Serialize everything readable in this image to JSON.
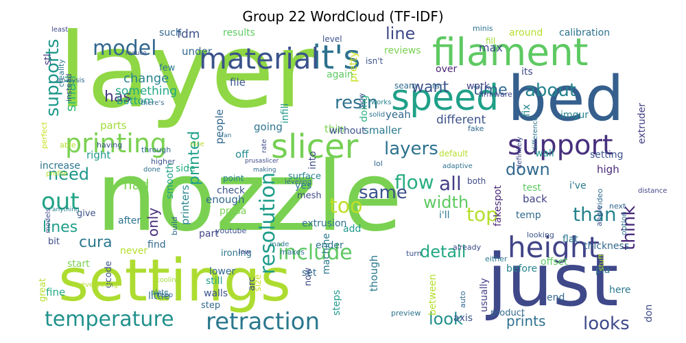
{
  "chart_data": {
    "type": "wordcloud",
    "title": "Group 22 WordCloud (TF-IDF)",
    "colormap": "viridis",
    "background": "#ffffff",
    "words": [
      {
        "text": "layer",
        "color": "#8fd744"
      },
      {
        "text": "nozzle",
        "color": "#7ad151"
      },
      {
        "text": "settings",
        "color": "#addc30"
      },
      {
        "text": "just",
        "color": "#3f4889"
      },
      {
        "text": "bed",
        "color": "#355f8d"
      },
      {
        "text": "filament",
        "color": "#5ec962"
      },
      {
        "text": "speed",
        "color": "#1fa088"
      },
      {
        "text": "slicer",
        "color": "#75d054"
      },
      {
        "text": "height",
        "color": "#414487"
      },
      {
        "text": "support",
        "color": "#472f7d"
      },
      {
        "text": "it's",
        "color": "#2c728e"
      },
      {
        "text": "material",
        "color": "#3b528b"
      },
      {
        "text": "printing",
        "color": "#7ad151"
      },
      {
        "text": "retraction",
        "color": "#2a788e"
      },
      {
        "text": "temperature",
        "color": "#21918c"
      },
      {
        "text": "model",
        "color": "#31688e"
      },
      {
        "text": "include",
        "color": "#5ec962"
      },
      {
        "text": "out",
        "color": "#20a486"
      },
      {
        "text": "resolution",
        "color": "#1e9c89"
      },
      {
        "text": "layers",
        "color": "#2c728e"
      },
      {
        "text": "supports",
        "color": "#1f988b"
      },
      {
        "text": "looks",
        "color": "#3e4a89"
      },
      {
        "text": "think",
        "color": "#482878"
      },
      {
        "text": "than",
        "color": "#26828e"
      },
      {
        "text": "cura",
        "color": "#2a788e"
      },
      {
        "text": "detail",
        "color": "#22a884"
      },
      {
        "text": "top",
        "color": "#b5de2b"
      },
      {
        "text": "flow",
        "color": "#28ae80"
      },
      {
        "text": "too",
        "color": "#bddf26"
      },
      {
        "text": "all",
        "color": "#433e85"
      },
      {
        "text": "resin",
        "color": "#2c728e"
      },
      {
        "text": "about",
        "color": "#26828e"
      },
      {
        "text": "time",
        "color": "#31688e"
      },
      {
        "text": "want",
        "color": "#3b528b"
      },
      {
        "text": "line",
        "color": "#3e4989"
      },
      {
        "text": "same",
        "color": "#3b528b"
      },
      {
        "text": "width",
        "color": "#5ec962"
      },
      {
        "text": "lines",
        "color": "#1f9e89"
      },
      {
        "text": "need",
        "color": "#1f968b"
      },
      {
        "text": "had",
        "color": "#7ad151"
      },
      {
        "text": "has",
        "color": "#453781"
      },
      {
        "text": "down",
        "color": "#31688e"
      },
      {
        "text": "printed",
        "color": "#1fa088"
      },
      {
        "text": "look",
        "color": "#21918c"
      },
      {
        "text": "prints",
        "color": "#2d708e"
      },
      {
        "text": "small",
        "color": "#35b779"
      },
      {
        "text": "only",
        "color": "#472c7a"
      },
      {
        "text": "fdm",
        "color": "#3b528b"
      },
      {
        "text": "under",
        "color": "#31688e"
      },
      {
        "text": "results",
        "color": "#5ec962"
      },
      {
        "text": "calibration",
        "color": "#2c728e"
      },
      {
        "text": "around",
        "color": "#b5de2b"
      },
      {
        "text": "max",
        "color": "#3e4989"
      },
      {
        "text": "stl",
        "color": "#443983"
      },
      {
        "text": "such",
        "color": "#31688e"
      },
      {
        "text": "few",
        "color": "#2a788e"
      },
      {
        "text": "change",
        "color": "#26828e"
      },
      {
        "text": "bottom",
        "color": "#1fa088"
      },
      {
        "text": "something",
        "color": "#22a884"
      },
      {
        "text": "parts",
        "color": "#a0da39"
      },
      {
        "text": "reviews",
        "color": "#7ad151"
      },
      {
        "text": "file",
        "color": "#3b528b"
      },
      {
        "text": "over",
        "color": "#482475"
      },
      {
        "text": "its",
        "color": "#3e4989"
      },
      {
        "text": "work",
        "color": "#414487"
      },
      {
        "text": "fix",
        "color": "#25858e"
      },
      {
        "text": "different",
        "color": "#3b528b"
      },
      {
        "text": "infill",
        "color": "#1f988b"
      },
      {
        "text": "yeah",
        "color": "#31688e"
      },
      {
        "text": "doing",
        "color": "#29af7f"
      },
      {
        "text": "pretty",
        "color": "#c8e020"
      },
      {
        "text": "again",
        "color": "#5ec962"
      },
      {
        "text": "imgur",
        "color": "#26828e"
      },
      {
        "text": "extruder",
        "color": "#433e85"
      },
      {
        "text": "wall",
        "color": "#1f988b"
      },
      {
        "text": "setting",
        "color": "#3b528b"
      },
      {
        "text": "high",
        "color": "#482878"
      },
      {
        "text": "i've",
        "color": "#2a788e"
      },
      {
        "text": "into",
        "color": "#3e4989"
      },
      {
        "text": "thin",
        "color": "#7ad151"
      },
      {
        "text": "smaller",
        "color": "#2a788e"
      },
      {
        "text": "without",
        "color": "#3b528b"
      },
      {
        "text": "going",
        "color": "#2c728e"
      },
      {
        "text": "people",
        "color": "#31688e"
      },
      {
        "text": "right",
        "color": "#1f988b"
      },
      {
        "text": "increase",
        "color": "#2c728e"
      },
      {
        "text": "side",
        "color": "#25ab82"
      },
      {
        "text": "smooth",
        "color": "#1fa088"
      },
      {
        "text": "off",
        "color": "#238a8d"
      },
      {
        "text": "check",
        "color": "#3b528b"
      },
      {
        "text": "surface",
        "color": "#26828e"
      },
      {
        "text": "enough",
        "color": "#31688e"
      },
      {
        "text": "yes",
        "color": "#2a788e"
      },
      {
        "text": "mesh",
        "color": "#3e4989"
      },
      {
        "text": "point",
        "color": "#26828e"
      },
      {
        "text": "prusa",
        "color": "#7ad151"
      },
      {
        "text": "extrusion",
        "color": "#2c728e"
      },
      {
        "text": "add",
        "color": "#1f988b"
      },
      {
        "text": "i'll",
        "color": "#2a788e"
      },
      {
        "text": "fakespot",
        "color": "#482878"
      },
      {
        "text": "temp",
        "color": "#31688e"
      },
      {
        "text": "back",
        "color": "#414487"
      },
      {
        "text": "test",
        "color": "#5ec962"
      },
      {
        "text": "flat",
        "color": "#2a788e"
      },
      {
        "text": "give",
        "color": "#3b528b"
      },
      {
        "text": "after",
        "color": "#2c728e"
      },
      {
        "text": "printers",
        "color": "#25858e"
      },
      {
        "text": "part",
        "color": "#414487"
      },
      {
        "text": "find",
        "color": "#31688e"
      },
      {
        "text": "bit",
        "color": "#3e4989"
      },
      {
        "text": "ender",
        "color": "#2c728e"
      },
      {
        "text": "start",
        "color": "#7ad151"
      },
      {
        "text": "never",
        "color": "#b5de2b"
      },
      {
        "text": "ironing",
        "color": "#2c728e"
      },
      {
        "text": "great",
        "color": "#b5de2b"
      },
      {
        "text": "gcode",
        "color": "#3b528b"
      },
      {
        "text": "lower",
        "color": "#31688e"
      },
      {
        "text": "still",
        "color": "#1fa088"
      },
      {
        "text": "walls",
        "color": "#3b528b"
      },
      {
        "text": "little",
        "color": "#2c728e"
      },
      {
        "text": "fine",
        "color": "#22a884"
      },
      {
        "text": "step",
        "color": "#31688e"
      },
      {
        "text": "size",
        "color": "#c8e020"
      },
      {
        "text": "now",
        "color": "#3e4989"
      },
      {
        "text": "machine",
        "color": "#2a788e"
      },
      {
        "text": "steps",
        "color": "#1f988b"
      },
      {
        "text": "though",
        "color": "#2a788e"
      },
      {
        "text": "set",
        "color": "#31688e"
      },
      {
        "text": "pla",
        "color": "#2c728e"
      },
      {
        "text": "offset",
        "color": "#5ec962"
      },
      {
        "text": "before",
        "color": "#26828e"
      },
      {
        "text": "product",
        "color": "#31688e"
      },
      {
        "text": "here",
        "color": "#2a788e"
      },
      {
        "text": "between",
        "color": "#b5de2b"
      },
      {
        "text": "usually",
        "color": "#433e85"
      },
      {
        "text": "axis",
        "color": "#3b528b"
      },
      {
        "text": "end",
        "color": "#31688e"
      },
      {
        "text": "don",
        "color": "#3e4989"
      },
      {
        "text": "thickness",
        "color": "#31688e"
      },
      {
        "text": "arc",
        "color": "#414487"
      },
      {
        "text": "level",
        "color": "#3b528b"
      },
      {
        "text": "isn't",
        "color": "#3b528b"
      },
      {
        "text": "minis",
        "color": "#2c728e"
      },
      {
        "text": "fill",
        "color": "#a0da39"
      },
      {
        "text": "far",
        "color": "#31688e"
      },
      {
        "text": "firmware",
        "color": "#3e4989"
      },
      {
        "text": "seam",
        "color": "#31688e"
      },
      {
        "text": "difference",
        "color": "#2c728e"
      },
      {
        "text": "definitely",
        "color": "#3e4989"
      },
      {
        "text": "distance",
        "color": "#414487"
      },
      {
        "text": "next",
        "color": "#31688e"
      },
      {
        "text": "looking",
        "color": "#3b528b"
      },
      {
        "text": "option",
        "color": "#2c728e"
      },
      {
        "text": "angle",
        "color": "#3b528b"
      },
      {
        "text": "video",
        "color": "#31688e"
      },
      {
        "text": "either",
        "color": "#2a788e"
      },
      {
        "text": "already",
        "color": "#3e4989"
      },
      {
        "text": "stuff",
        "color": "#b5de2b"
      },
      {
        "text": "preview",
        "color": "#2c728e"
      },
      {
        "text": "auto",
        "color": "#31688e"
      },
      {
        "text": "turn",
        "color": "#3b528b"
      },
      {
        "text": "both",
        "color": "#3e4989"
      },
      {
        "text": "adaptive",
        "color": "#2c728e"
      },
      {
        "text": "default",
        "color": "#b5de2b"
      },
      {
        "text": "fake",
        "color": "#31688e"
      },
      {
        "text": "works",
        "color": "#26828e"
      },
      {
        "text": "solid",
        "color": "#2c728e"
      },
      {
        "text": "slow",
        "color": "#3b528b"
      },
      {
        "text": "leveling",
        "color": "#31688e"
      },
      {
        "text": "rate",
        "color": "#3e4989"
      },
      {
        "text": "made",
        "color": "#2a788e"
      },
      {
        "text": "makes",
        "color": "#2c728e"
      },
      {
        "text": "low",
        "color": "#3e4989"
      },
      {
        "text": "youtube",
        "color": "#3b528b"
      },
      {
        "text": "build",
        "color": "#31688e"
      },
      {
        "text": "anything",
        "color": "#26828e"
      },
      {
        "text": "models",
        "color": "#3e4989"
      },
      {
        "text": "everything",
        "color": "#b5de2b"
      },
      {
        "text": "plate",
        "color": "#2c728e"
      },
      {
        "text": "cooling",
        "color": "#a0da39"
      },
      {
        "text": "keep",
        "color": "#31688e"
      },
      {
        "text": "profile",
        "color": "#b5de2b"
      },
      {
        "text": "higher",
        "color": "#3b528b"
      },
      {
        "text": "through",
        "color": "#31688e"
      },
      {
        "text": "done",
        "color": "#2c728e"
      },
      {
        "text": "prusaslicer",
        "color": "#3e4989"
      },
      {
        "text": "making",
        "color": "#31688e"
      },
      {
        "text": "fan",
        "color": "#2c728e"
      },
      {
        "text": "nice",
        "color": "#b5de2b"
      },
      {
        "text": "perfect",
        "color": "#c8e020"
      },
      {
        "text": "able",
        "color": "#b5de2b"
      },
      {
        "text": "having",
        "color": "#3b528b"
      },
      {
        "text": "there's",
        "color": "#31688e"
      },
      {
        "text": "instead",
        "color": "#3e4989"
      },
      {
        "text": "creality",
        "color": "#2c728e"
      },
      {
        "text": "analysis",
        "color": "#31688e"
      },
      {
        "text": "reduce",
        "color": "#3b528b"
      },
      {
        "text": "least",
        "color": "#3e4989"
      },
      {
        "text": "lol",
        "color": "#31688e"
      }
    ]
  }
}
